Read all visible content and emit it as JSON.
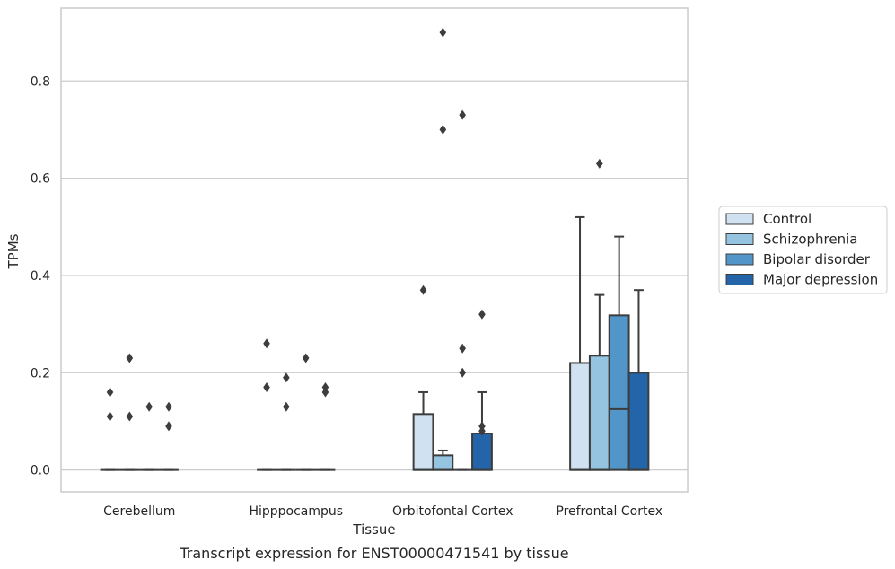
{
  "chart_data": {
    "type": "box",
    "xlabel": "Tissue",
    "ylabel": "TPMs",
    "caption": "Transcript expression for ENST00000471541 by tissue",
    "ylim": [
      -0.045,
      0.95
    ],
    "yticks": [
      "0.0",
      "0.2",
      "0.4",
      "0.6",
      "0.8"
    ],
    "ytick_values": [
      0,
      0.2,
      0.4,
      0.6,
      0.8
    ],
    "grid": "horizontal",
    "legend_position": "right",
    "categories": [
      "Cerebellum",
      "Hipppocampus",
      "Orbitofontal Cortex",
      "Prefrontal Cortex"
    ],
    "series": [
      {
        "name": "Control",
        "color": "#d0e1f2",
        "boxes": [
          {
            "q1": 0,
            "median": 0,
            "q3": 0,
            "whisker_low": 0,
            "whisker_high": 0,
            "outliers": [
              0.16,
              0.11
            ]
          },
          {
            "q1": 0,
            "median": 0,
            "q3": 0,
            "whisker_low": 0,
            "whisker_high": 0,
            "outliers": [
              0.26,
              0.17
            ]
          },
          {
            "q1": 0,
            "median": 0,
            "q3": 0.115,
            "whisker_low": 0,
            "whisker_high": 0.16,
            "outliers": [
              0.37
            ]
          },
          {
            "q1": 0,
            "median": 0,
            "q3": 0.22,
            "whisker_low": 0,
            "whisker_high": 0.52,
            "outliers": []
          }
        ]
      },
      {
        "name": "Schizophrenia",
        "color": "#94c4df",
        "boxes": [
          {
            "q1": 0,
            "median": 0,
            "q3": 0,
            "whisker_low": 0,
            "whisker_high": 0,
            "outliers": [
              0.23,
              0.11
            ]
          },
          {
            "q1": 0,
            "median": 0,
            "q3": 0,
            "whisker_low": 0,
            "whisker_high": 0,
            "outliers": [
              0.19,
              0.13
            ]
          },
          {
            "q1": 0,
            "median": 0,
            "q3": 0.03,
            "whisker_low": 0,
            "whisker_high": 0.04,
            "outliers": [
              0.9,
              0.7
            ]
          },
          {
            "q1": 0,
            "median": 0,
            "q3": 0.235,
            "whisker_low": 0,
            "whisker_high": 0.36,
            "outliers": [
              0.63
            ]
          }
        ]
      },
      {
        "name": "Bipolar disorder",
        "color": "#5296c9",
        "boxes": [
          {
            "q1": 0,
            "median": 0,
            "q3": 0,
            "whisker_low": 0,
            "whisker_high": 0,
            "outliers": [
              0.13
            ]
          },
          {
            "q1": 0,
            "median": 0,
            "q3": 0,
            "whisker_low": 0,
            "whisker_high": 0,
            "outliers": [
              0.23
            ]
          },
          {
            "q1": 0,
            "median": 0,
            "q3": 0,
            "whisker_low": 0,
            "whisker_high": 0,
            "outliers": [
              0.73,
              0.25,
              0.2
            ]
          },
          {
            "q1": 0,
            "median": 0.125,
            "q3": 0.318,
            "whisker_low": 0,
            "whisker_high": 0.48,
            "outliers": []
          }
        ]
      },
      {
        "name": "Major depression",
        "color": "#2464a8",
        "boxes": [
          {
            "q1": 0,
            "median": 0,
            "q3": 0,
            "whisker_low": 0,
            "whisker_high": 0,
            "outliers": [
              0.13,
              0.09
            ]
          },
          {
            "q1": 0,
            "median": 0,
            "q3": 0,
            "whisker_low": 0,
            "whisker_high": 0,
            "outliers": [
              0.17,
              0.16
            ]
          },
          {
            "q1": 0,
            "median": 0,
            "q3": 0.075,
            "whisker_low": 0,
            "whisker_high": 0.16,
            "outliers": [
              0.32,
              0.09,
              0.08
            ]
          },
          {
            "q1": 0,
            "median": 0,
            "q3": 0.2,
            "whisker_low": 0,
            "whisker_high": 0.37,
            "outliers": []
          }
        ]
      }
    ]
  }
}
